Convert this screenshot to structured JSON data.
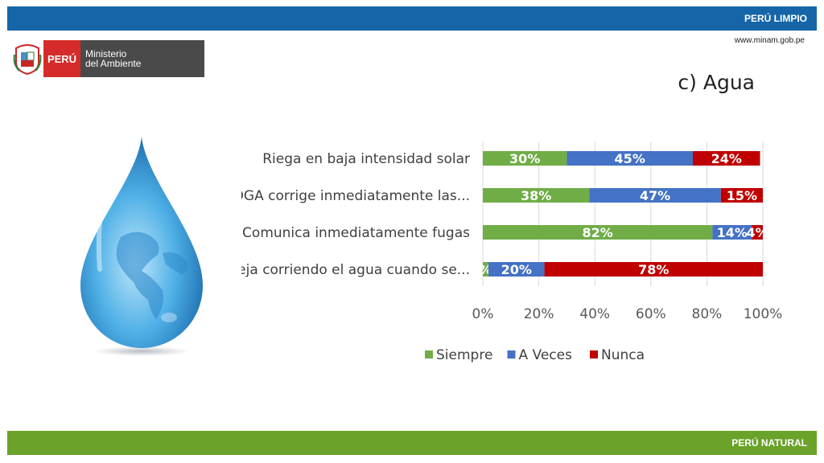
{
  "header": {
    "tagline": "PERÚ LIMPIO",
    "url": "www.minam.gob.pe"
  },
  "logo": {
    "country": "PERÚ",
    "ministry_line1": "Ministerio",
    "ministry_line2": "del Ambiente"
  },
  "slide": {
    "title": "c) Agua"
  },
  "footer": {
    "tagline": "PERÚ NATURAL"
  },
  "colors": {
    "siempre": "#70ad47",
    "a_veces": "#4472c4",
    "nunca": "#c00000",
    "top_bar": "#1565a8",
    "bottom_bar": "#6aa22a"
  },
  "icons": {
    "illustration": "water-drop-globe-icon",
    "crest": "peru-coat-of-arms-icon"
  },
  "chart_data": {
    "type": "bar",
    "orientation": "horizontal",
    "stacked": true,
    "categories": [
      "Riega en baja intensidad solar",
      "La OGA corrige inmediatamente las...",
      "Comunica inmediatamente fugas",
      "Deja corriendo el agua cuando se..."
    ],
    "series": [
      {
        "name": "Siempre",
        "values": [
          30,
          38,
          82,
          2
        ],
        "labels": [
          "30%",
          "38%",
          "82%",
          "%"
        ],
        "color": "#70ad47"
      },
      {
        "name": "A Veces",
        "values": [
          45,
          47,
          14,
          20
        ],
        "labels": [
          "45%",
          "47%",
          "14%",
          "20%"
        ],
        "color": "#4472c4"
      },
      {
        "name": "Nunca",
        "values": [
          24,
          15,
          4,
          78
        ],
        "labels": [
          "24%",
          "15%",
          "4%",
          "78%"
        ],
        "color": "#c00000"
      }
    ],
    "xlim": [
      0,
      100
    ],
    "xticks": [
      "0%",
      "20%",
      "40%",
      "60%",
      "80%",
      "100%"
    ],
    "grid": true,
    "legend_position": "bottom"
  }
}
